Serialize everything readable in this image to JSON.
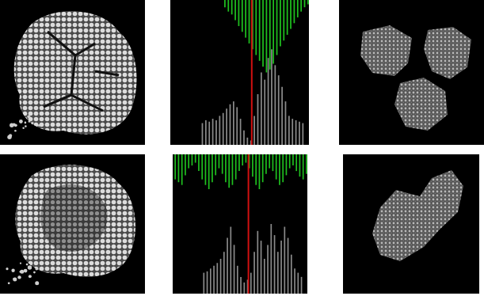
{
  "chart_data": [
    {
      "type": "bar",
      "categories": [
        null,
        null,
        null,
        null,
        null,
        null,
        null,
        null,
        null,
        null,
        null,
        null,
        null,
        null,
        null,
        null,
        null,
        null,
        null,
        null,
        null,
        null,
        null,
        null,
        null,
        null,
        null,
        null,
        null,
        null,
        null,
        null,
        null,
        null,
        null,
        null,
        null,
        null,
        null,
        null
      ],
      "series": [
        {
          "color": "#8a8a8a",
          "values": [
            0,
            0,
            0,
            0,
            0,
            0,
            0,
            0,
            0,
            15,
            17,
            16,
            18,
            17,
            20,
            22,
            25,
            28,
            30,
            26,
            18,
            10,
            5,
            3,
            20,
            35,
            50,
            45,
            60,
            66,
            55,
            48,
            40,
            30,
            20,
            18,
            17,
            16,
            15,
            0
          ]
        },
        {
          "color": "#1fc01f",
          "axis": "y2",
          "values": [
            0,
            0,
            0,
            0,
            0,
            0,
            0,
            0,
            0,
            0,
            0,
            0,
            0,
            0,
            0,
            5,
            8,
            10,
            14,
            18,
            22,
            26,
            30,
            34,
            38,
            42,
            46,
            50,
            48,
            44,
            38,
            32,
            28,
            24,
            20,
            16,
            12,
            8,
            5,
            3
          ]
        }
      ],
      "ylim": [
        0,
        100
      ],
      "y2lim": [
        100,
        0
      ],
      "threshold": 23,
      "grid": false,
      "tick_labels": false
    },
    {
      "type": "bar",
      "categories": [
        null,
        null,
        null,
        null,
        null,
        null,
        null,
        null,
        null,
        null,
        null,
        null,
        null,
        null,
        null,
        null,
        null,
        null,
        null,
        null,
        null,
        null,
        null,
        null,
        null,
        null,
        null,
        null,
        null,
        null,
        null,
        null,
        null,
        null,
        null,
        null,
        null,
        null,
        null,
        null
      ],
      "series": [
        {
          "color": "#8a8a8a",
          "values": [
            0,
            0,
            0,
            0,
            0,
            0,
            0,
            0,
            0,
            15,
            16,
            18,
            20,
            22,
            25,
            30,
            40,
            48,
            35,
            20,
            12,
            8,
            10,
            15,
            30,
            45,
            38,
            25,
            35,
            50,
            42,
            30,
            38,
            48,
            40,
            28,
            18,
            15,
            12,
            0
          ]
        },
        {
          "color": "#1fc01f",
          "axis": "y2",
          "values": [
            18,
            20,
            22,
            15,
            10,
            8,
            6,
            12,
            18,
            22,
            25,
            20,
            15,
            10,
            14,
            20,
            24,
            22,
            18,
            12,
            8,
            6,
            10,
            16,
            22,
            25,
            20,
            14,
            10,
            12,
            18,
            22,
            20,
            15,
            10,
            8,
            12,
            16,
            18,
            14
          ]
        }
      ],
      "ylim": [
        0,
        100
      ],
      "y2lim": [
        100,
        0
      ],
      "threshold": 22,
      "grid": false,
      "tick_labels": false
    }
  ]
}
